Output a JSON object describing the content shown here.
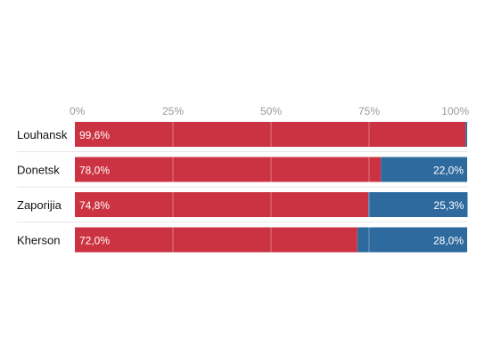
{
  "chart_data": {
    "type": "bar",
    "orientation": "horizontal",
    "stacked": true,
    "xlim": [
      0,
      100
    ],
    "x_ticks": [
      0,
      25,
      50,
      75,
      100
    ],
    "x_tick_labels": [
      "0%",
      "25%",
      "50%",
      "75%",
      "100%"
    ],
    "grid": true,
    "categories": [
      "Louhansk",
      "Donetsk",
      "Zaporijia",
      "Kherson"
    ],
    "series": [
      {
        "color": "#cc3342",
        "values": [
          99.6,
          78.0,
          74.8,
          72.0
        ],
        "labels": [
          "99,6%",
          "78,0%",
          "74,8%",
          "72,0%"
        ]
      },
      {
        "color": "#2e6a9e",
        "values": [
          0.4,
          22.0,
          25.3,
          28.0
        ],
        "labels": [
          "",
          "22,0%",
          "25,3%",
          "28,0%"
        ]
      }
    ]
  }
}
